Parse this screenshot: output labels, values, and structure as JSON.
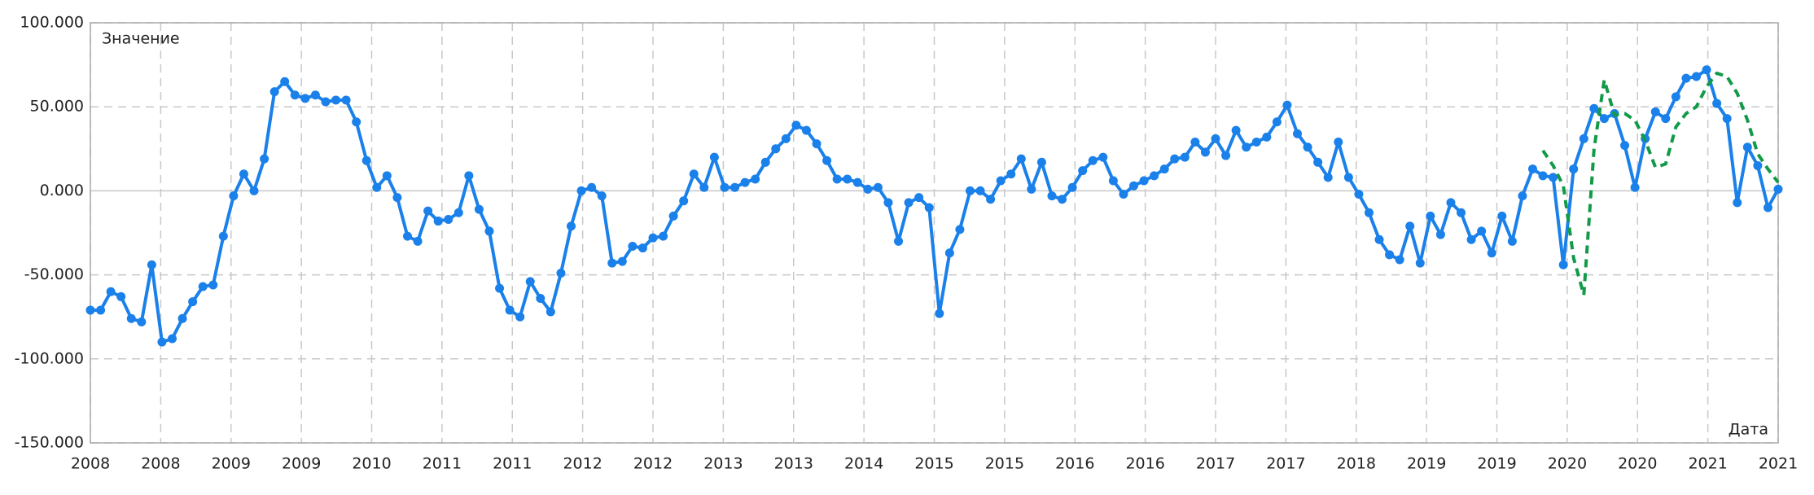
{
  "chart_data": {
    "type": "line",
    "y_axis_label": "Значение",
    "x_axis_label": "Дата",
    "ylim": [
      -150,
      100
    ],
    "yticks": [
      {
        "value": -150,
        "label": "-150.000"
      },
      {
        "value": -100,
        "label": "-100.000"
      },
      {
        "value": -50,
        "label": "-50.000"
      },
      {
        "value": 0,
        "label": "0.000"
      },
      {
        "value": 50,
        "label": "50.000"
      },
      {
        "value": 100,
        "label": "100.000"
      }
    ],
    "xlim": [
      0,
      165
    ],
    "xticks": [
      {
        "value": 0,
        "label": "2008"
      },
      {
        "value": 6.875,
        "label": "2008"
      },
      {
        "value": 13.75,
        "label": "2009"
      },
      {
        "value": 20.625,
        "label": "2009"
      },
      {
        "value": 27.5,
        "label": "2010"
      },
      {
        "value": 34.375,
        "label": "2011"
      },
      {
        "value": 41.25,
        "label": "2011"
      },
      {
        "value": 48.125,
        "label": "2012"
      },
      {
        "value": 55,
        "label": "2012"
      },
      {
        "value": 61.875,
        "label": "2013"
      },
      {
        "value": 68.75,
        "label": "2013"
      },
      {
        "value": 75.625,
        "label": "2014"
      },
      {
        "value": 82.5,
        "label": "2015"
      },
      {
        "value": 89.375,
        "label": "2015"
      },
      {
        "value": 96.25,
        "label": "2016"
      },
      {
        "value": 103.125,
        "label": "2016"
      },
      {
        "value": 110,
        "label": "2017"
      },
      {
        "value": 116.875,
        "label": "2017"
      },
      {
        "value": 123.75,
        "label": "2018"
      },
      {
        "value": 130.625,
        "label": "2019"
      },
      {
        "value": 137.5,
        "label": "2019"
      },
      {
        "value": 144.375,
        "label": "2020"
      },
      {
        "value": 151.25,
        "label": "2020"
      },
      {
        "value": 158.125,
        "label": "2021"
      },
      {
        "value": 165,
        "label": "2021"
      }
    ],
    "grid": true,
    "series": [
      {
        "color": "#1a80ea",
        "markers": true,
        "dashed": false,
        "values": [
          -71,
          -71,
          -60,
          -63,
          -76,
          -78,
          -44,
          -90,
          -88,
          -76,
          -66,
          -57,
          -56,
          -27,
          -3,
          10,
          0,
          19,
          59,
          65,
          57,
          55,
          57,
          53,
          54,
          54,
          41,
          18,
          2,
          9,
          -4,
          -27,
          -30,
          -12,
          -18,
          -17,
          -13,
          9,
          -11,
          -24,
          -58,
          -71,
          -75,
          -54,
          -64,
          -72,
          -49,
          -21,
          0,
          2,
          -3,
          -43,
          -42,
          -33,
          -34,
          -28,
          -27,
          -15,
          -6,
          10,
          2,
          20,
          2,
          2,
          5,
          7,
          17,
          25,
          31,
          39,
          36,
          28,
          18,
          7,
          7,
          5,
          1,
          2,
          -7,
          -30,
          -7,
          -4,
          -10,
          -73,
          -37,
          -23,
          0,
          0,
          -5,
          6,
          10,
          19,
          1,
          17,
          -3,
          -5,
          2,
          12,
          18,
          20,
          6,
          -2,
          3,
          6,
          9,
          13,
          19,
          20,
          29,
          23,
          31,
          21,
          36,
          26,
          29,
          32,
          41,
          51,
          34,
          26,
          17,
          8,
          29,
          8,
          -2,
          -13,
          -29,
          -38,
          -41,
          -21,
          -43,
          -15,
          -26,
          -7,
          -13,
          -29,
          -24,
          -37,
          -15,
          -30,
          -3,
          13,
          9,
          8,
          -44,
          13,
          31,
          49,
          43,
          46,
          27,
          2,
          31,
          47,
          43,
          56,
          67,
          68,
          72,
          52,
          43,
          -7,
          26,
          15,
          -10,
          1
        ]
      },
      {
        "color": "#129a48",
        "markers": false,
        "dashed": true,
        "values": [
          null,
          null,
          null,
          null,
          null,
          null,
          null,
          null,
          null,
          null,
          null,
          null,
          null,
          null,
          null,
          null,
          null,
          null,
          null,
          null,
          null,
          null,
          null,
          null,
          null,
          null,
          null,
          null,
          null,
          null,
          null,
          null,
          null,
          null,
          null,
          null,
          null,
          null,
          null,
          null,
          null,
          null,
          null,
          null,
          null,
          null,
          null,
          null,
          null,
          null,
          null,
          null,
          null,
          null,
          null,
          null,
          null,
          null,
          null,
          null,
          null,
          null,
          null,
          null,
          null,
          null,
          null,
          null,
          null,
          null,
          null,
          null,
          null,
          null,
          null,
          null,
          null,
          null,
          null,
          null,
          null,
          null,
          null,
          null,
          null,
          null,
          null,
          null,
          null,
          null,
          null,
          null,
          null,
          null,
          null,
          null,
          null,
          null,
          null,
          null,
          null,
          null,
          null,
          null,
          null,
          null,
          null,
          null,
          null,
          null,
          null,
          null,
          null,
          null,
          null,
          null,
          null,
          null,
          null,
          null,
          null,
          null,
          null,
          null,
          null,
          null,
          null,
          null,
          null,
          null,
          null,
          null,
          null,
          null,
          null,
          null,
          null,
          null,
          null,
          null,
          null,
          null,
          24,
          15,
          3,
          -40,
          -62,
          25,
          66,
          45,
          46,
          42,
          30,
          14,
          16,
          38,
          46,
          50,
          62,
          70,
          68,
          58,
          42,
          22,
          13,
          5
        ]
      }
    ]
  }
}
